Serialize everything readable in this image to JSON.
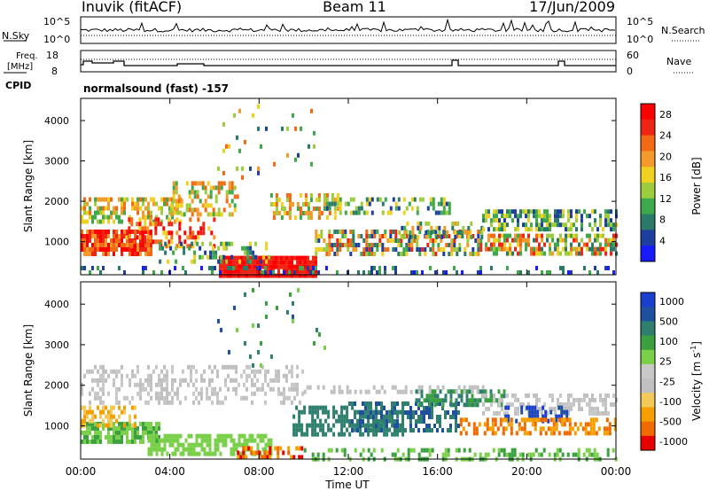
{
  "header": {
    "station": "Inuvik (fitACF)",
    "beam": "Beam 11",
    "date": "17/Jun/2009"
  },
  "top_panels": {
    "nsky_label": "N.Sky",
    "nsky_ticks": [
      "10^5",
      "10^0"
    ],
    "nsearch_label": "N.Search",
    "nsearch_ticks": [
      "10^5",
      "10^0"
    ],
    "freq_label_1": "Freq.",
    "freq_label_2": "[MHz]",
    "freq_ticks": [
      "18",
      "8"
    ],
    "nave_label": "Nave",
    "nave_ticks": [
      "60",
      "0"
    ],
    "cpid_label": "CPID",
    "cpid_value": "normalsound (fast) -157"
  },
  "colors": {
    "power": [
      "#1a1aff",
      "#1f3f9f",
      "#2a7a6a",
      "#3fa84a",
      "#9ccd3f",
      "#f0d020",
      "#f39a2a",
      "#f36a14",
      "#ef2414",
      "#ff0000"
    ],
    "velocity": [
      "#e80000",
      "#f06a00",
      "#f5a000",
      "#f3c95a",
      "#c0c0c0",
      "#c8c8c8",
      "#7ad04a",
      "#3aa040",
      "#2f7f6f",
      "#1f4f9f",
      "#1a3fcf"
    ]
  },
  "chart_data": [
    {
      "type": "heatmap",
      "name": "power",
      "ylabel": "Slant Range [km]",
      "yticks": [
        1000,
        2000,
        3000,
        4000
      ],
      "ylim": [
        180,
        4550
      ],
      "xlim": [
        0,
        24
      ],
      "colorbar_label": "Power [dB]",
      "colorbar_ticks": [
        "4",
        "8",
        "12",
        "16",
        "20",
        "24",
        "28"
      ],
      "colorbar_range": [
        0,
        30
      ]
    },
    {
      "type": "heatmap",
      "name": "velocity",
      "ylabel": "Slant Range [km]",
      "yticks": [
        1000,
        2000,
        3000,
        4000
      ],
      "ylim": [
        180,
        4550
      ],
      "xlim": [
        0,
        24
      ],
      "colorbar_label": "Velocity [m s",
      "colorbar_label_sup": "-1",
      "colorbar_label_tail": "]",
      "colorbar_ticks": [
        "-1000",
        "-500",
        "-100",
        "-25",
        "25",
        "100",
        "500",
        "1000"
      ]
    }
  ],
  "x_axis": {
    "ticks": [
      "00:00",
      "04:00",
      "08:00",
      "12:00",
      "16:00",
      "20:00",
      "00:00"
    ],
    "tick_hours": [
      0,
      4,
      8,
      12,
      16,
      20,
      24
    ],
    "label": "Time UT"
  }
}
